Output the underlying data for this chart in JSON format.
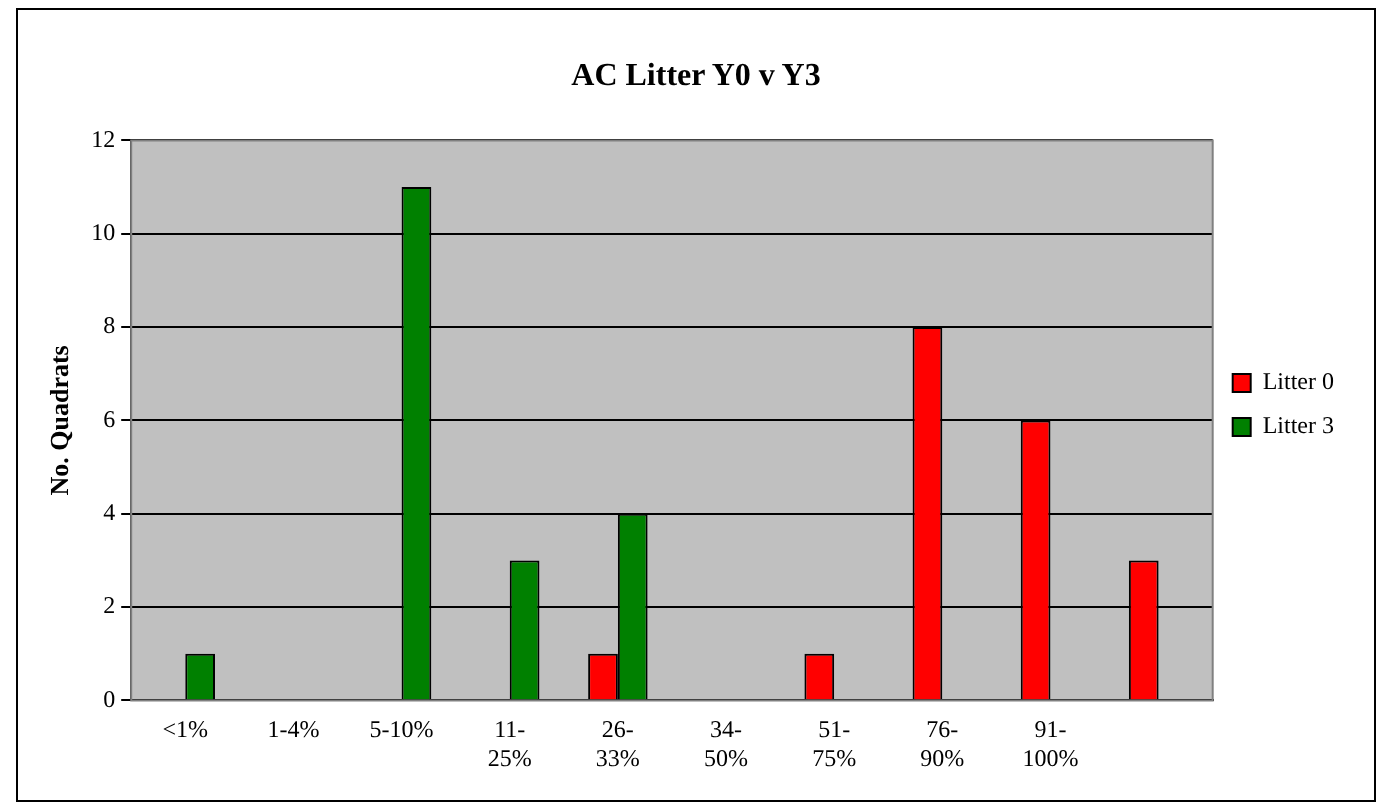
{
  "chart_data": {
    "type": "bar",
    "title": "AC Litter Y0 v Y3",
    "ylabel": "No. Quadrats",
    "categories": [
      "<1%",
      "1-4%",
      "5-10%",
      "11- 25%",
      "26- 33%",
      "34- 50%",
      "51- 75%",
      "76- 90%",
      "91- 100%",
      null
    ],
    "series": [
      {
        "name": "Litter 0",
        "color": "#ff0000",
        "values": [
          0,
          0,
          0,
          0,
          1,
          0,
          1,
          8,
          6,
          3
        ]
      },
      {
        "name": "Litter 3",
        "color": "#008000",
        "values": [
          1,
          0,
          11,
          3,
          4,
          0,
          0,
          0,
          0,
          0
        ]
      }
    ],
    "ylim": [
      0,
      12
    ],
    "yticks": [
      0,
      2,
      4,
      6,
      8,
      10,
      12
    ],
    "grid": "y",
    "legend": "right"
  }
}
